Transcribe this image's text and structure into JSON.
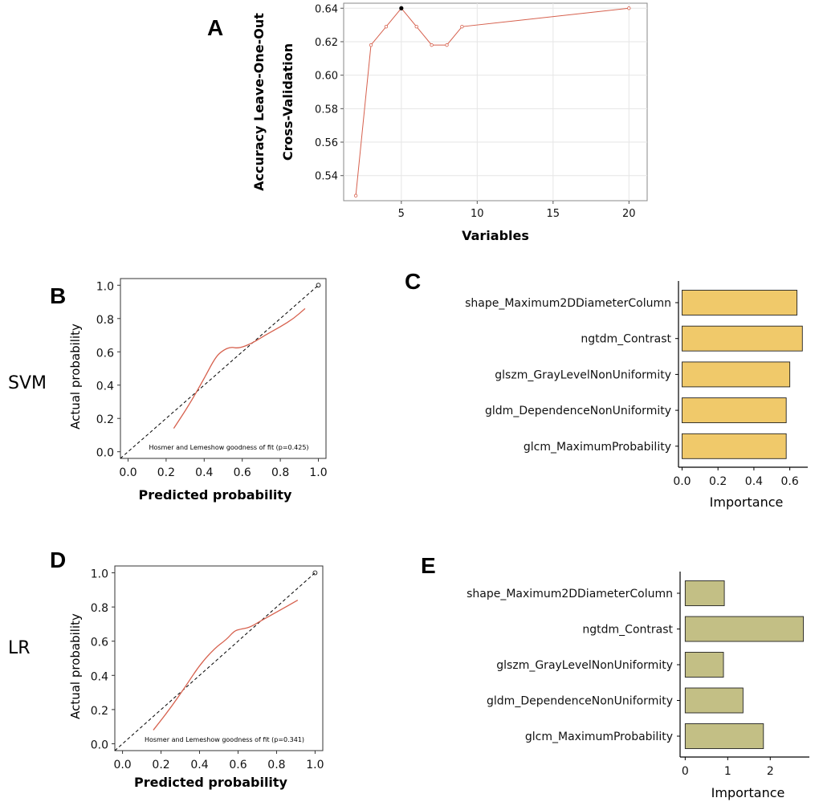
{
  "panels": {
    "a_letter": "A",
    "b_letter": "B",
    "c_letter": "C",
    "d_letter": "D",
    "e_letter": "E"
  },
  "rows": {
    "svm_label": "SVM",
    "lr_label": "LR"
  },
  "colors": {
    "line": "#d6604d",
    "bar_c": "#f0c96a",
    "bar_e": "#c3bf85",
    "grid": "#e6e6e6"
  },
  "chart_data": [
    {
      "id": "A",
      "type": "line",
      "x": [
        2,
        3,
        4,
        5,
        6,
        7,
        8,
        9,
        20
      ],
      "y": [
        0.528,
        0.618,
        0.629,
        0.64,
        0.629,
        0.618,
        0.618,
        0.629,
        0.64
      ],
      "highlight_x": 5,
      "xticks": [
        5,
        10,
        15,
        20
      ],
      "yticks": [
        0.54,
        0.56,
        0.58,
        0.6,
        0.62,
        0.64
      ],
      "xlim": [
        1.2,
        21.2
      ],
      "ylim": [
        0.525,
        0.643
      ],
      "xlabel": "Variables",
      "ylabel_line1": "Accuracy Leave-One-Out",
      "ylabel_line2": "Cross-Validation",
      "grid": true
    },
    {
      "id": "B",
      "type": "line",
      "row": "SVM",
      "calibration_x": [
        0.24,
        0.32,
        0.4,
        0.46,
        0.5,
        0.54,
        0.58,
        0.65,
        0.72,
        0.8,
        0.87,
        0.93
      ],
      "calibration_y": [
        0.14,
        0.28,
        0.44,
        0.57,
        0.61,
        0.63,
        0.62,
        0.65,
        0.7,
        0.75,
        0.8,
        0.86
      ],
      "xticks": [
        "0.0",
        "0.2",
        "0.4",
        "0.6",
        "0.8",
        "1.0"
      ],
      "yticks": [
        "0.0",
        "0.2",
        "0.4",
        "0.6",
        "0.8",
        "1.0"
      ],
      "xlim": [
        -0.04,
        1.04
      ],
      "ylim": [
        -0.04,
        1.04
      ],
      "xlabel": "Predicted probability",
      "ylabel": "Actual probability",
      "annotation": "Hosmer and Lemeshow goodness of fit (p=0.425)"
    },
    {
      "id": "C",
      "type": "bar",
      "orientation": "horizontal",
      "categories": [
        "shape_Maximum2DDiameterColumn",
        "ngtdm_Contrast",
        "glszm_GrayLevelNonUniformity",
        "gldm_DependenceNonUniformity",
        "glcm_MaximumProbability"
      ],
      "values": [
        0.64,
        0.67,
        0.6,
        0.58,
        0.58
      ],
      "xticks": [
        "0.0",
        "0.2",
        "0.4",
        "0.6"
      ],
      "xtick_values": [
        0,
        0.2,
        0.4,
        0.6
      ],
      "xlim": [
        -0.02,
        0.7
      ],
      "xlabel": "Importance"
    },
    {
      "id": "D",
      "type": "line",
      "row": "LR",
      "calibration_x": [
        0.16,
        0.25,
        0.33,
        0.4,
        0.48,
        0.54,
        0.58,
        0.61,
        0.66,
        0.72,
        0.8,
        0.91
      ],
      "calibration_y": [
        0.08,
        0.21,
        0.34,
        0.46,
        0.56,
        0.61,
        0.66,
        0.67,
        0.68,
        0.72,
        0.77,
        0.84
      ],
      "xticks": [
        "0.0",
        "0.2",
        "0.4",
        "0.6",
        "0.8",
        "1.0"
      ],
      "yticks": [
        "0.0",
        "0.2",
        "0.4",
        "0.6",
        "0.8",
        "1.0"
      ],
      "xlim": [
        -0.04,
        1.04
      ],
      "ylim": [
        -0.04,
        1.04
      ],
      "xlabel": "Predicted probability",
      "ylabel": "Actual probability",
      "annotation": "Hosmer and Lemeshow goodness of fit (p=0.341)"
    },
    {
      "id": "E",
      "type": "bar",
      "orientation": "horizontal",
      "categories": [
        "shape_Maximum2DDiameterColumn",
        "ngtdm_Contrast",
        "glszm_GrayLevelNonUniformity",
        "gldm_DependenceNonUniformity",
        "glcm_MaximumProbability"
      ],
      "values": [
        0.92,
        2.78,
        0.9,
        1.36,
        1.84
      ],
      "xticks": [
        "0",
        "1",
        "2"
      ],
      "xtick_values": [
        0,
        1,
        2
      ],
      "xlim": [
        -0.12,
        2.92
      ],
      "xlabel": "Importance"
    }
  ]
}
